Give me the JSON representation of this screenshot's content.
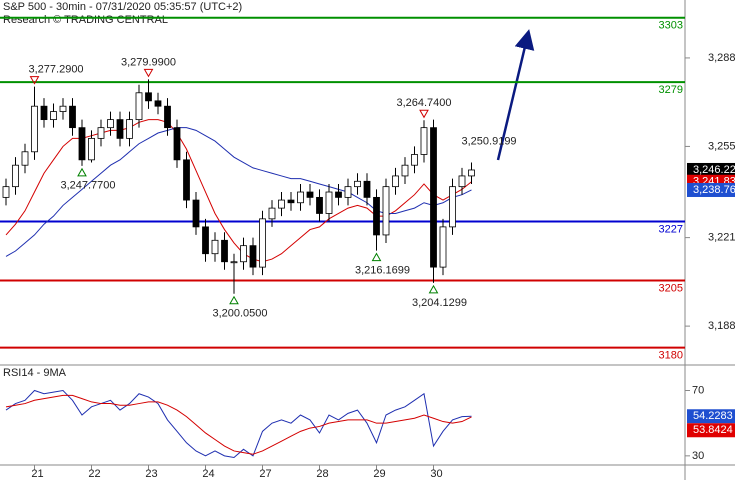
{
  "chart_data": [
    {
      "type": "candlestick",
      "title": "S&P 500 - 30min - 07/31/2020 05:35:57 (UTC+2)",
      "subtitle": "Research © TRADING CENTRAL",
      "categories": [
        null,
        null,
        null,
        "21",
        null,
        null,
        null,
        null,
        null,
        "22",
        null,
        null,
        null,
        null,
        null,
        "23",
        null,
        null,
        null,
        null,
        null,
        "24",
        null,
        null,
        null,
        null,
        null,
        "27",
        null,
        null,
        null,
        null,
        null,
        "28",
        null,
        null,
        null,
        null,
        null,
        "29",
        null,
        null,
        null,
        null,
        null,
        "30",
        null,
        null,
        null,
        null
      ],
      "open": [
        3236,
        3240,
        3248,
        3253,
        3270,
        3265,
        3268,
        3270,
        3262,
        3250,
        3258,
        3262,
        3265,
        3258,
        3265,
        3275,
        3272,
        3270,
        3262,
        3250,
        3235,
        3225,
        3215,
        3220,
        3212,
        3212,
        3218,
        3210,
        3228,
        3232,
        3235,
        3234,
        3238,
        3236,
        3230,
        3238,
        3236,
        3240,
        3242,
        3236,
        3222,
        3240,
        3244,
        3248,
        3252,
        3262,
        3210,
        3225,
        3240,
        3244
      ],
      "high": [
        3243,
        3251,
        3256,
        3277.29,
        3273,
        3271,
        3273,
        3273,
        3265,
        3261,
        3265,
        3268,
        3268,
        3268,
        3278,
        3279.99,
        3275,
        3273,
        3265,
        3253,
        3238,
        3228,
        3223,
        3223,
        3215,
        3221,
        3221,
        3231,
        3235,
        3238,
        3238,
        3241,
        3241,
        3239,
        3241,
        3241,
        3243,
        3245,
        3245,
        3239,
        3243,
        3247,
        3251,
        3255,
        3264.74,
        3265,
        3228,
        3243,
        3247,
        3249
      ],
      "low": [
        3233,
        3237,
        3245,
        3250,
        3262,
        3262,
        3265,
        3259,
        3247.77,
        3249,
        3255,
        3259,
        3255,
        3255,
        3262,
        3269,
        3267,
        3259,
        3247,
        3232,
        3222,
        3212,
        3212,
        3209,
        3200.05,
        3209,
        3207,
        3207,
        3225,
        3229,
        3231,
        3231,
        3233,
        3227,
        3227,
        3233,
        3233,
        3237,
        3233,
        3216.17,
        3219,
        3237,
        3241,
        3245,
        3249,
        3204.13,
        3207,
        3222,
        3237,
        3241
      ],
      "close": [
        3240,
        3248,
        3253,
        3270,
        3265,
        3268,
        3270,
        3262,
        3250,
        3258,
        3262,
        3265,
        3258,
        3265,
        3275,
        3272,
        3270,
        3262,
        3250,
        3235,
        3225,
        3215,
        3220,
        3212,
        3212,
        3218,
        3210,
        3228,
        3232,
        3235,
        3234,
        3238,
        3236,
        3230,
        3238,
        3236,
        3240,
        3242,
        3236,
        3222,
        3240,
        3244,
        3248,
        3252,
        3262,
        3210,
        3225,
        3240,
        3244,
        3246.22
      ],
      "up_color": "#ffffff",
      "down_color": "#000000",
      "lines": [
        {
          "color": "#d40000",
          "values": [
            3222,
            3226,
            3231,
            3238,
            3245,
            3250,
            3255,
            3258,
            3258,
            3259,
            3260,
            3261,
            3261,
            3262,
            3264,
            3265,
            3265,
            3264,
            3260,
            3254,
            3246,
            3238,
            3230,
            3224,
            3219,
            3215,
            3213,
            3212,
            3213,
            3215,
            3218,
            3221,
            3224,
            3225,
            3228,
            3230,
            3232,
            3233,
            3232,
            3229,
            3229,
            3231,
            3234,
            3237,
            3241,
            3237,
            3235,
            3237,
            3239,
            3241.83
          ]
        },
        {
          "color": "#1f2fb0",
          "values": [
            3214,
            3216,
            3219,
            3222,
            3226,
            3229,
            3233,
            3236,
            3239,
            3242,
            3245,
            3248,
            3250,
            3253,
            3256,
            3258,
            3260,
            3261,
            3262,
            3262,
            3261,
            3259,
            3257,
            3254,
            3251,
            3249,
            3247,
            3246,
            3245,
            3244,
            3243,
            3243,
            3242,
            3241,
            3240,
            3239,
            3238,
            3236,
            3234,
            3231,
            3230,
            3230,
            3231,
            3232,
            3234,
            3233,
            3234,
            3236,
            3237,
            3238.76
          ]
        }
      ],
      "levels": [
        {
          "value": 3303,
          "color": "#009000"
        },
        {
          "value": 3279,
          "color": "#009000"
        },
        {
          "value": 3227,
          "color": "#0000d0"
        },
        {
          "value": 3205,
          "color": "#d00000"
        },
        {
          "value": 3180,
          "color": "#d00000"
        }
      ],
      "annotations": [
        {
          "value": 3277.29,
          "label": "3,277.2900",
          "index": 3,
          "marker": "down"
        },
        {
          "value": 3279.99,
          "label": "3,279.9900",
          "index": 15,
          "marker": "down"
        },
        {
          "value": 3247.77,
          "label": "3,247.7700",
          "index": 8,
          "marker": "up"
        },
        {
          "value": 3200.05,
          "label": "3,200.0500",
          "index": 24,
          "marker": "up"
        },
        {
          "value": 3216.17,
          "label": "3,216.1699",
          "index": 39,
          "marker": "up"
        },
        {
          "value": 3264.74,
          "label": "3,264.7400",
          "index": 44,
          "marker": "down"
        },
        {
          "value": 3204.13,
          "label": "3,204.1299",
          "index": 45,
          "marker": "up"
        },
        {
          "value": 3250.92,
          "label": "3,250.9199",
          "index": 49,
          "marker": "none"
        }
      ],
      "last_values": [
        {
          "value": 3246.22,
          "label": "3,246.22",
          "color": "#000000"
        },
        {
          "value": 3241.83,
          "label": "3,241.83",
          "color": "#e00000"
        },
        {
          "value": 3238.76,
          "label": "3,238.76",
          "color": "#1f4fd0"
        }
      ],
      "ylim": [
        3173.5,
        3309.6
      ],
      "yticks": [
        {
          "value": 3188,
          "label": "3,188"
        },
        {
          "value": 3221,
          "label": "3,221"
        },
        {
          "value": 3255,
          "label": "3,255"
        },
        {
          "value": 3288,
          "label": "3,288"
        }
      ]
    },
    {
      "type": "line",
      "title": "RSI14 - 9MA",
      "series": [
        {
          "color": "#1f2fb0",
          "values": [
            58,
            62,
            64,
            70,
            68,
            69,
            70,
            64,
            55,
            60,
            62,
            64,
            58,
            62,
            68,
            66,
            62,
            52,
            45,
            38,
            33,
            30,
            33,
            30,
            29,
            34,
            30,
            45,
            50,
            52,
            50,
            55,
            52,
            44,
            55,
            52,
            56,
            58,
            50,
            38,
            55,
            58,
            60,
            64,
            68,
            36,
            45,
            52,
            54,
            54.2283
          ]
        },
        {
          "color": "#d40000",
          "values": [
            60,
            61,
            62,
            64,
            65,
            66,
            67,
            67,
            65,
            63,
            62,
            62,
            61,
            61,
            62,
            63,
            63,
            61,
            58,
            54,
            49,
            44,
            40,
            36,
            33,
            32,
            31,
            33,
            36,
            39,
            42,
            45,
            47,
            48,
            50,
            51,
            52,
            52,
            52,
            50,
            50,
            51,
            52,
            53,
            55,
            53,
            51,
            50,
            51,
            53.8424
          ]
        }
      ],
      "last_values": [
        {
          "value": 54.2283,
          "color": "#1f4fd0"
        },
        {
          "value": 53.8424,
          "color": "#e00000"
        }
      ],
      "ylim": [
        24.4,
        85.6
      ],
      "yticks": [
        30,
        70
      ]
    }
  ]
}
